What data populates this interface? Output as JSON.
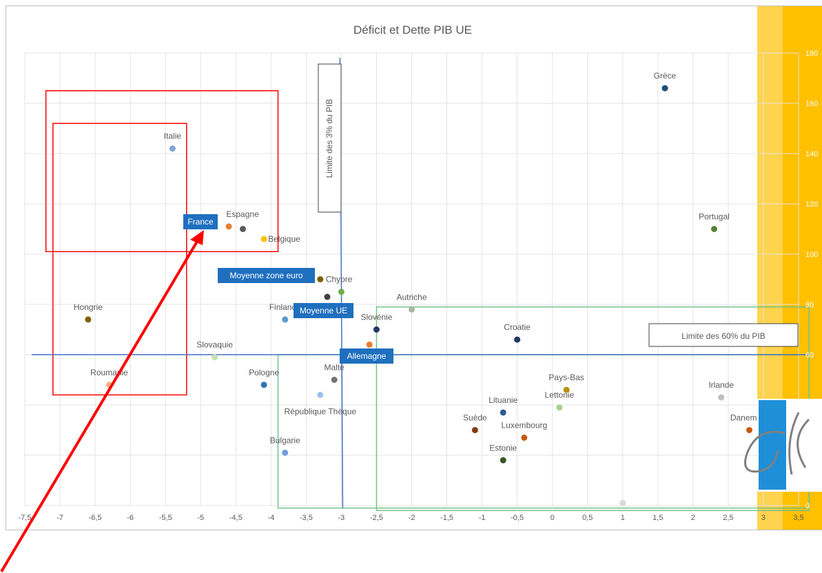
{
  "chart_data": {
    "type": "scatter",
    "title": "Déficit et Dette PIB UE",
    "xlim": [
      -7.5,
      3.5
    ],
    "ylim": [
      0,
      180
    ],
    "x_ticks": [
      "-7,5",
      "-7",
      "-6,5",
      "-6",
      "-5,5",
      "-5",
      "-4,5",
      "-4",
      "-3,5",
      "-3",
      "-2,5",
      "-2",
      "-1,5",
      "-1",
      "-0,5",
      "0",
      "0,5",
      "1",
      "1,5",
      "2",
      "2,5",
      "3",
      "3,5"
    ],
    "y_ticks": [
      "0",
      "20",
      "40",
      "60",
      "80",
      "100",
      "120",
      "140",
      "160",
      "180"
    ],
    "grid": true,
    "points": [
      {
        "name": "Grèce",
        "x": 1.6,
        "y": 166,
        "color": "#1f4e79",
        "label": "Grèce"
      },
      {
        "name": "Italie",
        "x": -5.4,
        "y": 142,
        "color": "#7fa7d6",
        "label": "Italie"
      },
      {
        "name": "Portugal",
        "x": 2.3,
        "y": 110,
        "color": "#548235",
        "label": "Portugal"
      },
      {
        "name": "Espagne",
        "x": -4.6,
        "y": 111,
        "color": "#ed7d31",
        "label": "Espagne"
      },
      {
        "name": "France",
        "x": -4.4,
        "y": 110,
        "color": "#595959",
        "label": "France"
      },
      {
        "name": "Belgique",
        "x": -4.1,
        "y": 106,
        "color": "#ffc000",
        "label": "Belgique"
      },
      {
        "name": "Chypre",
        "x": -3.3,
        "y": 90,
        "color": "#7f6000",
        "label": "Chypre"
      },
      {
        "name": "Moyenne zone euro",
        "x": -3.2,
        "y": 83,
        "color": "#404040",
        "label": "Moyenne zone euro"
      },
      {
        "name": "Vert clair",
        "x": -3.0,
        "y": 85,
        "color": "#70ad47",
        "label": ""
      },
      {
        "name": "Autriche",
        "x": -2.0,
        "y": 78,
        "color": "#a5b89f",
        "label": "Autriche"
      },
      {
        "name": "Hongrie",
        "x": -6.6,
        "y": 74,
        "color": "#806000",
        "label": "Hongrie"
      },
      {
        "name": "Finlande",
        "x": -3.8,
        "y": 74,
        "color": "#5b9bd5",
        "label": "Finlande"
      },
      {
        "name": "Slovénie",
        "x": -2.5,
        "y": 70,
        "color": "#203864",
        "label": "Slovénie"
      },
      {
        "name": "Croatie",
        "x": -0.5,
        "y": 66,
        "color": "#1f3864",
        "label": "Croatie"
      },
      {
        "name": "Allemagne",
        "x": -2.6,
        "y": 64,
        "color": "#ed7d31",
        "label": "Allemagne"
      },
      {
        "name": "Slovaquie",
        "x": -4.8,
        "y": 59,
        "color": "#c5e0b4",
        "label": "Slovaquie"
      },
      {
        "name": "Malte",
        "x": -3.1,
        "y": 50,
        "color": "#767171",
        "label": "Malte"
      },
      {
        "name": "Pologne",
        "x": -4.1,
        "y": 48,
        "color": "#2e75b6",
        "label": "Pologne"
      },
      {
        "name": "Roumanie",
        "x": -6.3,
        "y": 48,
        "color": "#f4b183",
        "label": "Roumanie"
      },
      {
        "name": "Pays-Bas",
        "x": 0.2,
        "y": 46,
        "color": "#bf9000",
        "label": "Pays-Bas"
      },
      {
        "name": "République Tchèque",
        "x": -3.3,
        "y": 44,
        "color": "#9dc3e6",
        "label": "République Thèque"
      },
      {
        "name": "Irlande",
        "x": 2.4,
        "y": 43,
        "color": "#bfbfbf",
        "label": "Irlande"
      },
      {
        "name": "Lettonie",
        "x": 0.1,
        "y": 39,
        "color": "#a9d18e",
        "label": "Lettonie"
      },
      {
        "name": "Lituanie",
        "x": -0.7,
        "y": 37,
        "color": "#2f5597",
        "label": "Lituanie"
      },
      {
        "name": "Suède",
        "x": -1.1,
        "y": 30,
        "color": "#843c0c",
        "label": "Suède"
      },
      {
        "name": "Danemark",
        "x": 2.8,
        "y": 30,
        "color": "#c55a11",
        "label": "Danemark"
      },
      {
        "name": "Luxembourg",
        "x": -0.4,
        "y": 27,
        "color": "#c55a11",
        "label": "Luxembourg"
      },
      {
        "name": "Bulgarie",
        "x": -3.8,
        "y": 21,
        "color": "#6f9fd8",
        "label": "Bulgarie"
      },
      {
        "name": "Estonie",
        "x": -0.7,
        "y": 18,
        "color": "#375623",
        "label": "Estonie"
      },
      {
        "name": "Point gris",
        "x": 1.0,
        "y": 1,
        "color": "#d9d9d9",
        "label": ""
      }
    ],
    "reference_lines": [
      {
        "type": "vertical",
        "x": -3,
        "label": "Limite des 3% du PIB",
        "color": "#4472c4"
      },
      {
        "type": "horizontal",
        "y": 60,
        "label": "Limite des 60% du PIB",
        "color": "#4472c4"
      }
    ],
    "highlighted_labels": {
      "France": "France",
      "Moyenne zone euro": "Moyenne zone euro",
      "Moyenne UE": "Moyenne UE",
      "Allemagne": "Allemagne"
    },
    "colors": {
      "reference_line": "#4472c4",
      "red_box": "#ff0000",
      "green_box": "#70c389",
      "highlight_bg": "#1f6fbf",
      "yellow_band": "#ffc000",
      "arrow": "#ff0000"
    }
  }
}
